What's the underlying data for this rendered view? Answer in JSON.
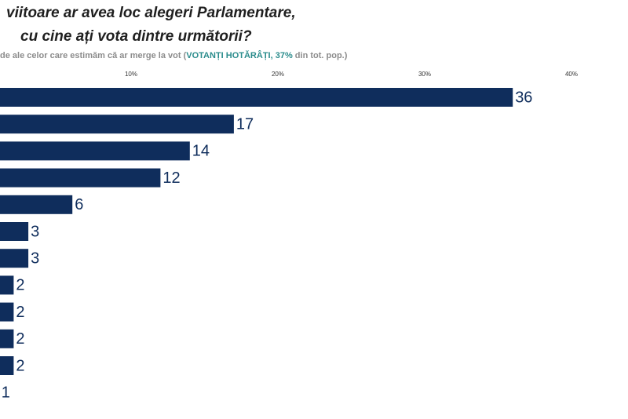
{
  "chart_data": {
    "type": "bar",
    "orientation": "horizontal",
    "title": [
      "viitoare ar avea loc alegeri Parlamentare,",
      "cu cine ați vota dintre următorii?"
    ],
    "subtitle": [
      "de ale celor care estimăm că ar merge la vot (",
      "VOTANȚI HOTĂRÂȚI, 37%",
      " din tot. pop.)"
    ],
    "categories": [
      null,
      null,
      null,
      null,
      null,
      null,
      null,
      null,
      null,
      null,
      null,
      null
    ],
    "values": [
      36,
      17,
      14,
      12,
      6,
      3,
      3,
      2,
      2,
      2,
      2,
      1
    ],
    "color": "#0f2d5c",
    "xlim": [
      0,
      40
    ],
    "xticks": [
      {
        "value": 10,
        "label": "10%"
      },
      {
        "value": 20,
        "label": "20%"
      },
      {
        "value": 30,
        "label": "30%"
      },
      {
        "value": 40,
        "label": "40%"
      }
    ],
    "grid": false
  }
}
